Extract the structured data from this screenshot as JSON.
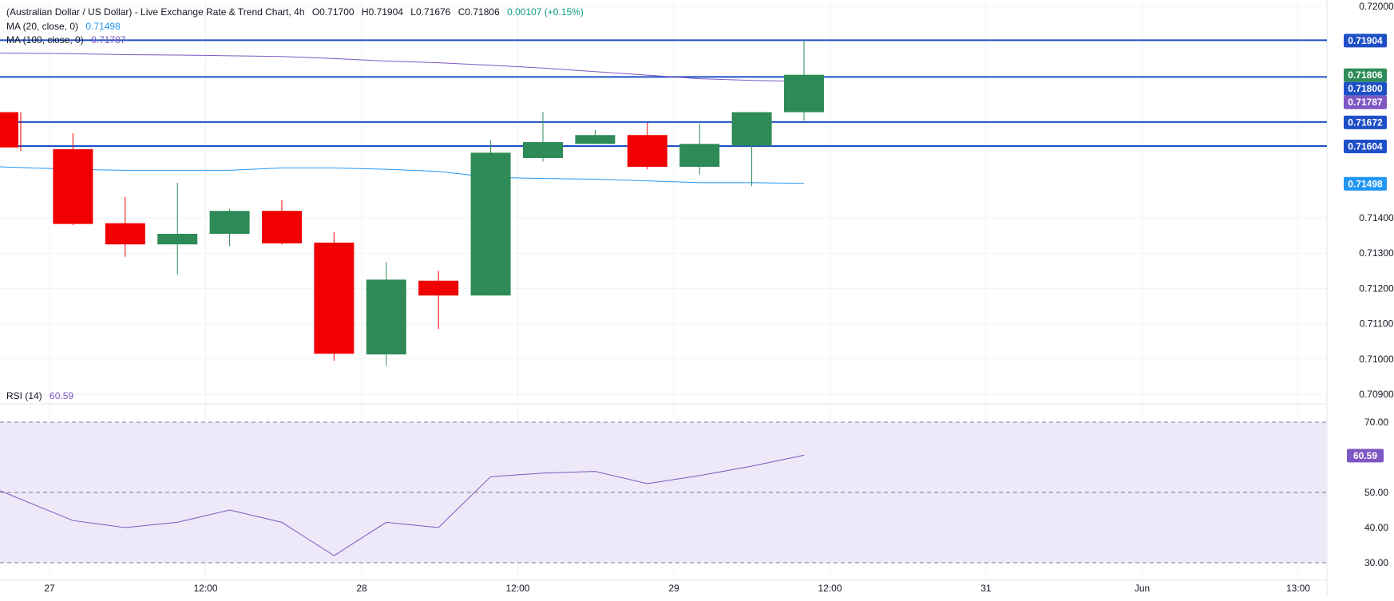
{
  "header": {
    "title": "(Australian Dollar / US Dollar) - Live Exchange Rate & Trend Chart, 4h",
    "ohlc": [
      "O0.71700",
      "H0.71904",
      "L0.71676",
      "C0.71806"
    ],
    "change": "0.00107 (+0.15%)",
    "ma20_label": "MA (20, close, 0)",
    "ma20_value": "0.71498",
    "ma100_label": "MA (100, close, 0)",
    "ma100_value": "0.71787"
  },
  "rsi_legend": {
    "label": "RSI (14)",
    "value": "60.59"
  },
  "colors": {
    "up": "#2e8b57",
    "down": "#f00000",
    "ma20": "#2196f3",
    "ma100": "#7e57c2",
    "hline": "#1e4fc7",
    "rsi_line": "#7e57c2",
    "rsi_band": "#ede9f8"
  },
  "chart_data": [
    {
      "type": "candlestick",
      "timeframe": "4h",
      "ylim": [
        0.70875,
        0.72
      ],
      "y_ticks": [
        "0.72000",
        "0.71400",
        "0.71300",
        "0.71200",
        "0.71100",
        "0.71000",
        "0.70900"
      ],
      "x_ticks": [
        "27",
        "12:00",
        "28",
        "12:00",
        "29",
        "12:00",
        "31",
        "Jun",
        "13:00"
      ],
      "candles": [
        {
          "open": 0.717,
          "high": 0.717,
          "low": 0.7159,
          "close": 0.716
        },
        {
          "open": 0.71595,
          "high": 0.7164,
          "low": 0.7138,
          "close": 0.71383
        },
        {
          "open": 0.71385,
          "high": 0.7146,
          "low": 0.7129,
          "close": 0.71325
        },
        {
          "open": 0.71325,
          "high": 0.715,
          "low": 0.7124,
          "close": 0.71355
        },
        {
          "open": 0.71355,
          "high": 0.71425,
          "low": 0.7132,
          "close": 0.7142
        },
        {
          "open": 0.7142,
          "high": 0.7145,
          "low": 0.71325,
          "close": 0.71328
        },
        {
          "open": 0.7133,
          "high": 0.7136,
          "low": 0.70995,
          "close": 0.71015
        },
        {
          "open": 0.71013,
          "high": 0.71275,
          "low": 0.7098,
          "close": 0.71225
        },
        {
          "open": 0.71222,
          "high": 0.7125,
          "low": 0.71085,
          "close": 0.7118
        },
        {
          "open": 0.7118,
          "high": 0.7162,
          "low": 0.7118,
          "close": 0.71585
        },
        {
          "open": 0.7157,
          "high": 0.717,
          "low": 0.7156,
          "close": 0.71615
        },
        {
          "open": 0.7161,
          "high": 0.7165,
          "low": 0.7161,
          "close": 0.71635
        },
        {
          "open": 0.71635,
          "high": 0.7167,
          "low": 0.71538,
          "close": 0.71545
        },
        {
          "open": 0.71545,
          "high": 0.71668,
          "low": 0.71523,
          "close": 0.7161
        },
        {
          "open": 0.71605,
          "high": 0.717,
          "low": 0.7149,
          "close": 0.717
        },
        {
          "open": 0.717,
          "high": 0.71904,
          "low": 0.71676,
          "close": 0.71806
        }
      ],
      "series": [
        {
          "name": "MA (20, close, 0)",
          "values": [
            0.71545,
            0.71538,
            0.71535,
            0.71535,
            0.71535,
            0.71542,
            0.71542,
            0.71538,
            0.71532,
            0.71515,
            0.71512,
            0.7151,
            0.71505,
            0.715,
            0.715,
            0.71498
          ]
        },
        {
          "name": "MA (100, close, 0)",
          "values": [
            0.71868,
            0.71866,
            0.71863,
            0.71862,
            0.7186,
            0.71858,
            0.71852,
            0.71845,
            0.7184,
            0.71833,
            0.71825,
            0.71815,
            0.71805,
            0.71795,
            0.7179,
            0.71787
          ]
        }
      ],
      "horizontal_lines": [
        0.71904,
        0.718,
        0.71672,
        0.71604
      ],
      "price_labels": [
        {
          "text": "0.71904",
          "value": 0.71904,
          "color": "#1e4fc7"
        },
        {
          "text": "0.71806",
          "value": 0.71806,
          "color": "#2e8b57"
        },
        {
          "text": "0.71800",
          "value": 0.718,
          "color": "#1e4fc7"
        },
        {
          "text": "0.71787",
          "value": 0.71787,
          "color": "#7e57c2"
        },
        {
          "text": "0.71672",
          "value": 0.71672,
          "color": "#1e4fc7"
        },
        {
          "text": "0.71604",
          "value": 0.71604,
          "color": "#1e4fc7"
        },
        {
          "text": "0.71498",
          "value": 0.71498,
          "color": "#2196f3"
        }
      ]
    },
    {
      "type": "line",
      "name": "RSI (14)",
      "ylim": [
        25,
        75
      ],
      "y_ticks": [
        "70.00",
        "50.00",
        "40.00",
        "30.00"
      ],
      "band": [
        30,
        70
      ],
      "dashed_levels": [
        70,
        50,
        30
      ],
      "values": [
        50.5,
        42.0,
        40.0,
        41.5,
        45.0,
        41.5,
        32.0,
        41.5,
        40.0,
        54.5,
        55.5,
        56.0,
        52.5,
        54.8,
        57.5,
        60.59
      ],
      "last_value": "60.59"
    }
  ]
}
